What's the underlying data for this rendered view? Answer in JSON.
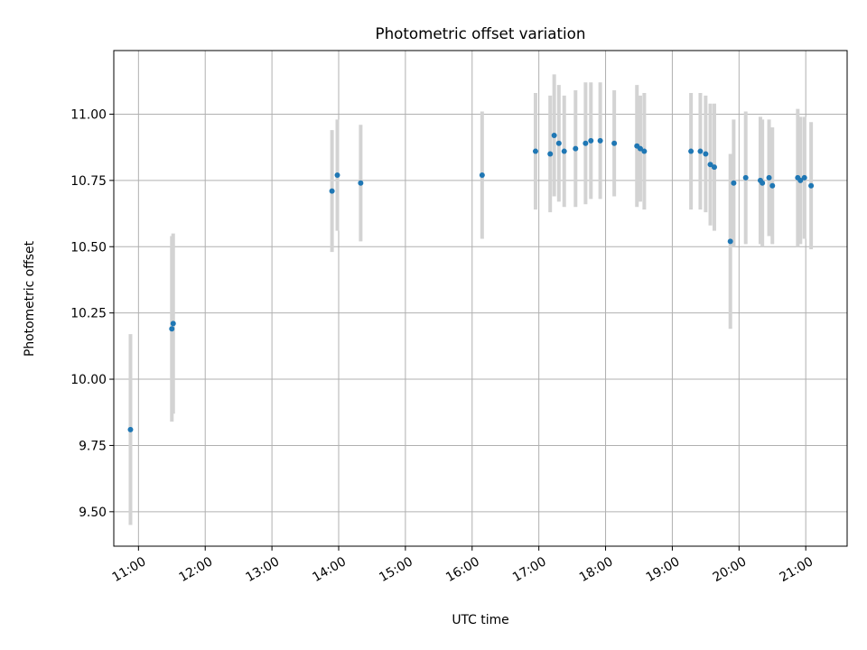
{
  "chart_data": {
    "type": "scatter",
    "title": "Photometric offset variation",
    "xlabel": "UTC time",
    "ylabel": "Photometric offset",
    "x_unit": "UTC hour of day",
    "xlim": [
      10.63,
      21.62
    ],
    "ylim": [
      9.37,
      11.24
    ],
    "x_ticks": [
      {
        "value": 11,
        "label": "11:00"
      },
      {
        "value": 12,
        "label": "12:00"
      },
      {
        "value": 13,
        "label": "13:00"
      },
      {
        "value": 14,
        "label": "14:00"
      },
      {
        "value": 15,
        "label": "15:00"
      },
      {
        "value": 16,
        "label": "16:00"
      },
      {
        "value": 17,
        "label": "17:00"
      },
      {
        "value": 18,
        "label": "18:00"
      },
      {
        "value": 19,
        "label": "19:00"
      },
      {
        "value": 20,
        "label": "20:00"
      },
      {
        "value": 21,
        "label": "21:00"
      }
    ],
    "y_ticks": [
      {
        "value": 9.5,
        "label": "9.50"
      },
      {
        "value": 9.75,
        "label": "9.75"
      },
      {
        "value": 10.0,
        "label": "10.00"
      },
      {
        "value": 10.25,
        "label": "10.25"
      },
      {
        "value": 10.5,
        "label": "10.50"
      },
      {
        "value": 10.75,
        "label": "10.75"
      },
      {
        "value": 11.0,
        "label": "11.00"
      }
    ],
    "grid": true,
    "marker_color": "#1f77b4",
    "errorbar_color": "#d3d3d3",
    "points": [
      {
        "x": 10.88,
        "y": 9.81,
        "err": 0.36
      },
      {
        "x": 11.5,
        "y": 10.19,
        "err": 0.35
      },
      {
        "x": 11.52,
        "y": 10.21,
        "err": 0.34
      },
      {
        "x": 13.9,
        "y": 10.71,
        "err": 0.23
      },
      {
        "x": 13.98,
        "y": 10.77,
        "err": 0.21
      },
      {
        "x": 14.33,
        "y": 10.74,
        "err": 0.22
      },
      {
        "x": 16.15,
        "y": 10.77,
        "err": 0.24
      },
      {
        "x": 16.95,
        "y": 10.86,
        "err": 0.22
      },
      {
        "x": 17.17,
        "y": 10.85,
        "err": 0.22
      },
      {
        "x": 17.23,
        "y": 10.92,
        "err": 0.23
      },
      {
        "x": 17.3,
        "y": 10.89,
        "err": 0.22
      },
      {
        "x": 17.38,
        "y": 10.86,
        "err": 0.21
      },
      {
        "x": 17.55,
        "y": 10.87,
        "err": 0.22
      },
      {
        "x": 17.7,
        "y": 10.89,
        "err": 0.23
      },
      {
        "x": 17.78,
        "y": 10.9,
        "err": 0.22
      },
      {
        "x": 17.92,
        "y": 10.9,
        "err": 0.22
      },
      {
        "x": 18.13,
        "y": 10.89,
        "err": 0.2
      },
      {
        "x": 18.47,
        "y": 10.88,
        "err": 0.23
      },
      {
        "x": 18.52,
        "y": 10.87,
        "err": 0.2
      },
      {
        "x": 18.58,
        "y": 10.86,
        "err": 0.22
      },
      {
        "x": 19.28,
        "y": 10.86,
        "err": 0.22
      },
      {
        "x": 19.42,
        "y": 10.86,
        "err": 0.22
      },
      {
        "x": 19.5,
        "y": 10.85,
        "err": 0.22
      },
      {
        "x": 19.57,
        "y": 10.81,
        "err": 0.23
      },
      {
        "x": 19.63,
        "y": 10.8,
        "err": 0.24
      },
      {
        "x": 19.87,
        "y": 10.52,
        "err": 0.33
      },
      {
        "x": 19.92,
        "y": 10.74,
        "err": 0.24
      },
      {
        "x": 20.1,
        "y": 10.76,
        "err": 0.25
      },
      {
        "x": 20.32,
        "y": 10.75,
        "err": 0.24
      },
      {
        "x": 20.35,
        "y": 10.74,
        "err": 0.24
      },
      {
        "x": 20.45,
        "y": 10.76,
        "err": 0.22
      },
      {
        "x": 20.5,
        "y": 10.73,
        "err": 0.22
      },
      {
        "x": 20.88,
        "y": 10.76,
        "err": 0.26
      },
      {
        "x": 20.92,
        "y": 10.75,
        "err": 0.24
      },
      {
        "x": 20.98,
        "y": 10.76,
        "err": 0.23
      },
      {
        "x": 21.08,
        "y": 10.73,
        "err": 0.24
      }
    ]
  }
}
